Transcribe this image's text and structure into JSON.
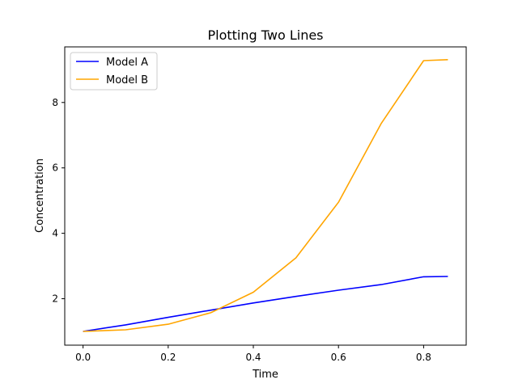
{
  "chart_data": {
    "type": "line",
    "title": "Plotting Two Lines",
    "xlabel": "Time",
    "ylabel": "Concentration",
    "xlim": [
      -0.043,
      0.9
    ],
    "ylim": [
      0.58,
      9.7
    ],
    "xticks": [
      0.0,
      0.2,
      0.4,
      0.6,
      0.8
    ],
    "xtick_labels": [
      "0.0",
      "0.2",
      "0.4",
      "0.6",
      "0.8"
    ],
    "yticks": [
      2,
      4,
      6,
      8
    ],
    "ytick_labels": [
      "2",
      "4",
      "6",
      "8"
    ],
    "grid": false,
    "legend_position": "top-left",
    "series": [
      {
        "name": "Model A",
        "color": "#0000ff",
        "x": [
          0.0,
          0.1,
          0.2,
          0.3,
          0.4,
          0.5,
          0.6,
          0.7,
          0.8,
          0.857
        ],
        "y": [
          1.0,
          1.2,
          1.43,
          1.65,
          1.87,
          2.07,
          2.26,
          2.43,
          2.67,
          2.68
        ]
      },
      {
        "name": "Model B",
        "color": "#ffa500",
        "x": [
          0.0,
          0.1,
          0.2,
          0.3,
          0.4,
          0.5,
          0.6,
          0.7,
          0.8,
          0.857
        ],
        "y": [
          1.0,
          1.05,
          1.22,
          1.57,
          2.2,
          3.25,
          4.95,
          7.35,
          9.28,
          9.31
        ]
      }
    ]
  }
}
